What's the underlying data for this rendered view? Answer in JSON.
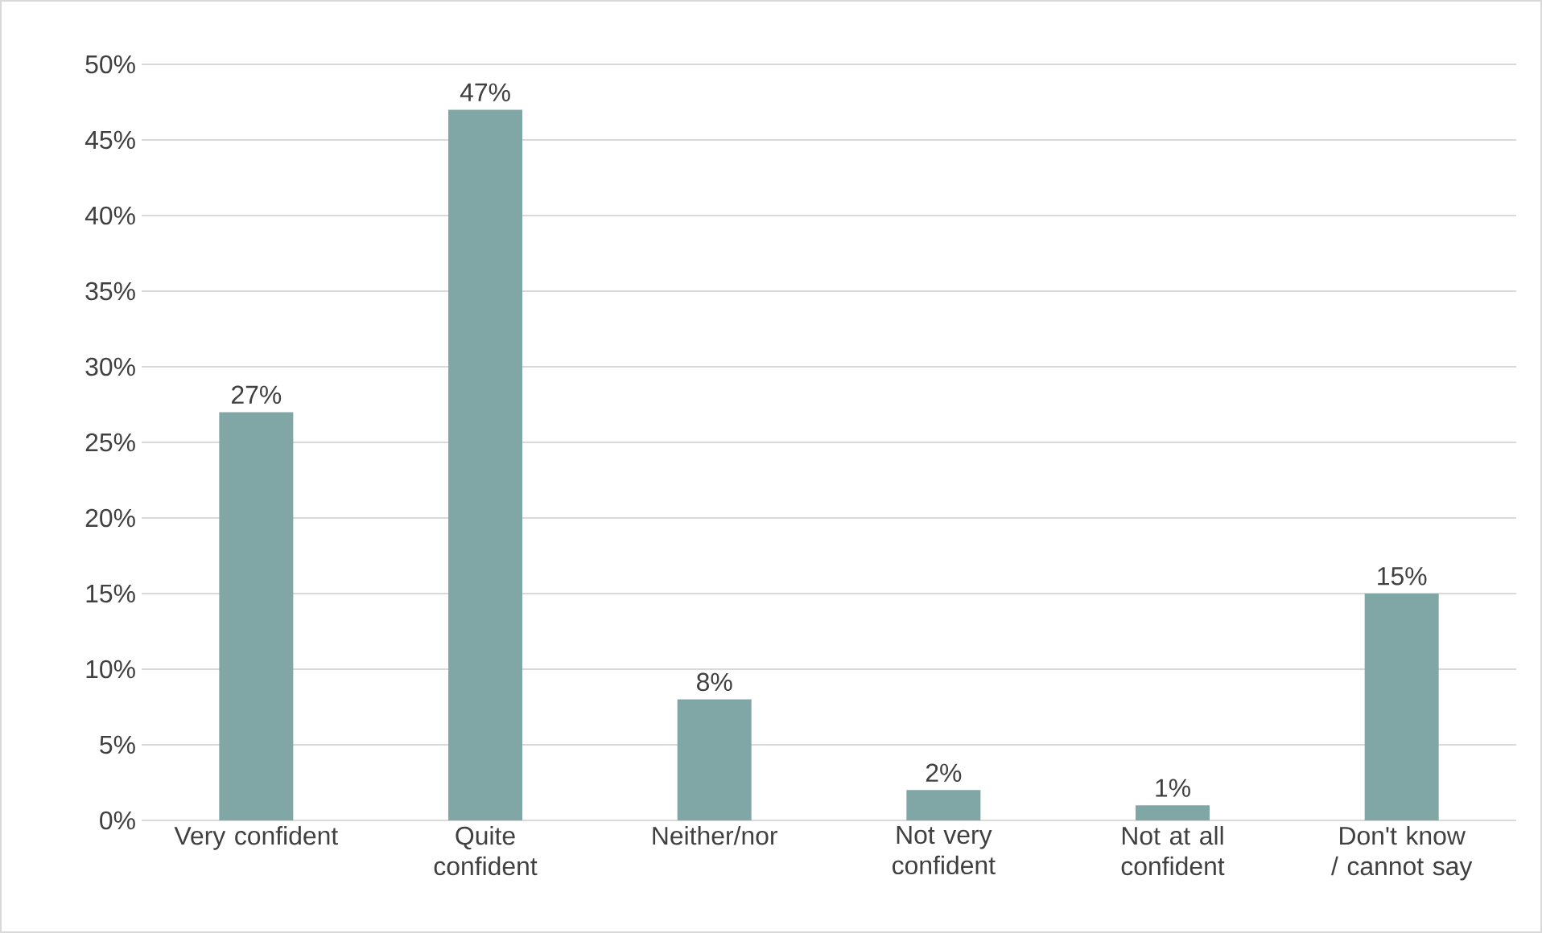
{
  "chart_data": {
    "type": "bar",
    "categories": [
      "Very confident",
      "Quite confident",
      "Neither/nor",
      "Not very confident",
      "Not at all confident",
      "Don't know / cannot say"
    ],
    "values": [
      27,
      47,
      8,
      2,
      1,
      15
    ],
    "value_labels": [
      "27%",
      "47%",
      "8%",
      "2%",
      "1%",
      "15%"
    ],
    "color": "#80a6a6",
    "ylim": [
      0,
      50
    ],
    "yticks": [
      {
        "value": 0,
        "label": "0%"
      },
      {
        "value": 5,
        "label": "5%"
      },
      {
        "value": 10,
        "label": "10%"
      },
      {
        "value": 15,
        "label": "15%"
      },
      {
        "value": 20,
        "label": "20%"
      },
      {
        "value": 25,
        "label": "25%"
      },
      {
        "value": 30,
        "label": "30%"
      },
      {
        "value": 35,
        "label": "35%"
      },
      {
        "value": 40,
        "label": "40%"
      },
      {
        "value": 45,
        "label": "45%"
      },
      {
        "value": 50,
        "label": "50%"
      }
    ],
    "grid": "y"
  }
}
